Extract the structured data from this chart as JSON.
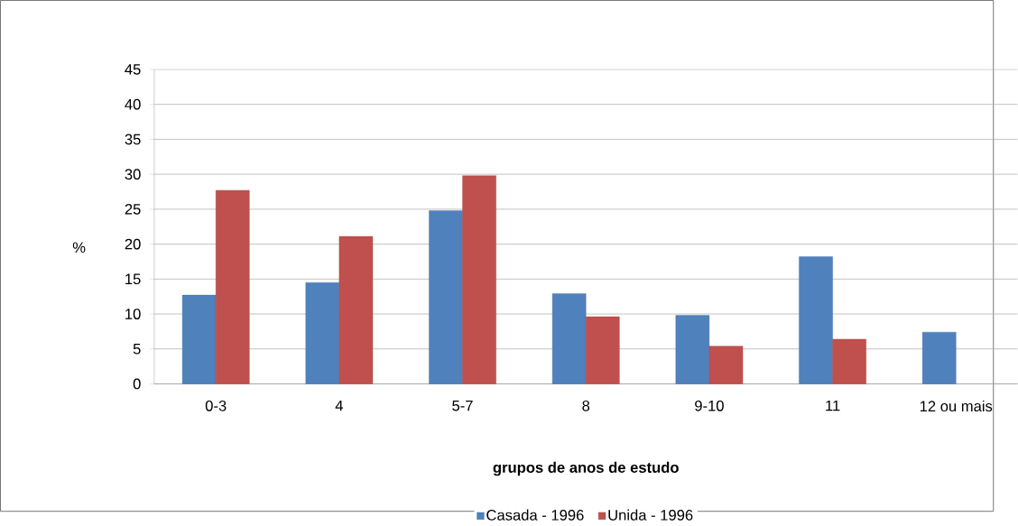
{
  "chart_data": {
    "type": "bar",
    "xlabel": "grupos de anos de estudo",
    "ylabel": "%",
    "categories": [
      "0-3",
      "4",
      "5-7",
      "8",
      "9-10",
      "11",
      "12 ou mais"
    ],
    "series": [
      {
        "name": "Casada - 1996",
        "color": "#4f81bd",
        "values": [
          12.7,
          14.5,
          24.8,
          12.9,
          9.8,
          18.2,
          7.4
        ]
      },
      {
        "name": "Unida - 1996",
        "color": "#c0504d",
        "values": [
          27.7,
          21.1,
          29.8,
          9.6,
          5.4,
          6.4,
          null
        ]
      }
    ],
    "ylim": [
      0,
      45
    ],
    "yticks": [
      0,
      5,
      10,
      15,
      20,
      25,
      30,
      35,
      40,
      45
    ],
    "grid": "y",
    "legend": "bottom"
  }
}
